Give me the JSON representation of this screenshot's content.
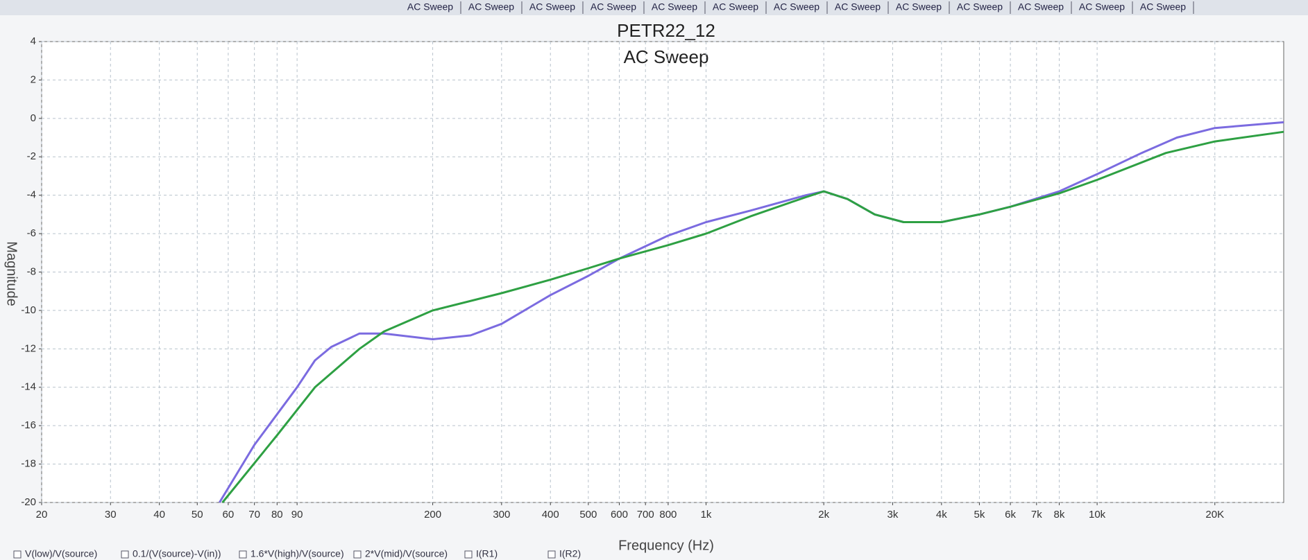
{
  "chart_data": {
    "type": "line",
    "tabs": [
      "AC Sweep",
      "AC Sweep",
      "AC Sweep",
      "AC Sweep",
      "AC Sweep",
      "AC Sweep",
      "AC Sweep",
      "AC Sweep",
      "AC Sweep",
      "AC Sweep",
      "AC Sweep",
      "AC Sweep",
      "AC Sweep"
    ],
    "title": "PETR22_12",
    "subtitle": "AC Sweep",
    "x_label": "Frequency (Hz)",
    "y_label": "Magnitude",
    "x_log": true,
    "grid": true,
    "xlim": [
      20,
      30000
    ],
    "xticks": [
      20,
      30,
      40,
      50,
      60,
      70,
      80,
      90,
      200,
      300,
      400,
      500,
      600,
      700,
      800,
      {
        "value": 1000,
        "label": "1k"
      },
      {
        "value": 2000,
        "label": "2k"
      },
      {
        "value": 3000,
        "label": "3k"
      },
      {
        "value": 4000,
        "label": "4k"
      },
      {
        "value": 5000,
        "label": "5k"
      },
      {
        "value": 6000,
        "label": "6k"
      },
      {
        "value": 7000,
        "label": "7k"
      },
      {
        "value": 8000,
        "label": "8k"
      },
      {
        "value": 10000,
        "label": "10k"
      },
      {
        "value": 20000,
        "label": "20K"
      }
    ],
    "ylim": [
      -20,
      4
    ],
    "yticks": [
      -20,
      -18,
      -16,
      -14,
      -12,
      -10,
      -8,
      -6,
      -4,
      -2,
      0,
      2,
      4
    ],
    "legend_items": [
      "V(low)/V(source)",
      "0.1/(V(source)-V(in))",
      "1.6*V(high)/V(source)",
      "2*V(mid)/V(source)",
      "I(R1)",
      "I(R2)"
    ],
    "series": [
      {
        "color": "#7b6be0",
        "x": [
          57,
          70,
          90,
          100,
          110,
          130,
          150,
          200,
          250,
          300,
          400,
          500,
          600,
          800,
          1000,
          1300,
          1800,
          2000,
          2300,
          2700,
          3200,
          4000,
          5000,
          6000,
          8000,
          10000,
          13000,
          16000,
          20000,
          30000
        ],
        "values": [
          -20,
          -17,
          -14,
          -12.6,
          -11.9,
          -11.2,
          -11.2,
          -11.5,
          -11.3,
          -10.7,
          -9.2,
          -8.2,
          -7.3,
          -6.1,
          -5.4,
          -4.8,
          -4.0,
          -3.8,
          -4.2,
          -5.0,
          -5.4,
          -5.4,
          -5.0,
          -4.6,
          -3.8,
          -2.9,
          -1.8,
          -1.0,
          -0.5,
          -0.2
        ]
      },
      {
        "color": "#2ea043",
        "x": [
          58,
          80,
          100,
          130,
          150,
          200,
          300,
          400,
          500,
          600,
          800,
          1000,
          1300,
          1800,
          2000,
          2300,
          2700,
          3200,
          4000,
          5000,
          6000,
          8000,
          10000,
          15000,
          20000,
          30000
        ],
        "values": [
          -20,
          -16.5,
          -14,
          -12,
          -11.1,
          -10,
          -9.1,
          -8.4,
          -7.8,
          -7.3,
          -6.6,
          -6.0,
          -5.1,
          -4.1,
          -3.8,
          -4.2,
          -5.0,
          -5.4,
          -5.4,
          -5.0,
          -4.6,
          -3.9,
          -3.2,
          -1.8,
          -1.2,
          -0.7
        ]
      }
    ]
  }
}
